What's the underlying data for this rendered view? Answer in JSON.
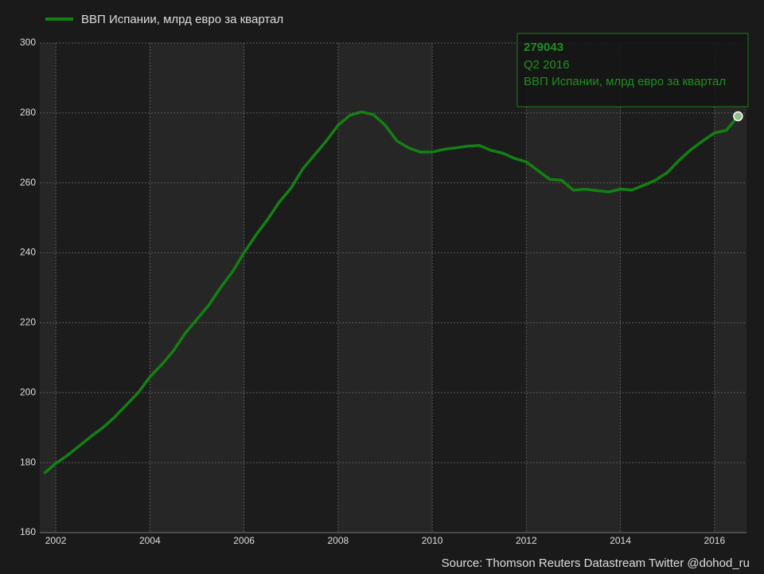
{
  "chart_data": {
    "type": "line",
    "x": [
      2001.75,
      2002.0,
      2002.25,
      2002.5,
      2002.75,
      2003.0,
      2003.25,
      2003.5,
      2003.75,
      2004.0,
      2004.25,
      2004.5,
      2004.75,
      2005.0,
      2005.25,
      2005.5,
      2005.75,
      2006.0,
      2006.25,
      2006.5,
      2006.75,
      2007.0,
      2007.25,
      2007.5,
      2007.75,
      2008.0,
      2008.25,
      2008.5,
      2008.75,
      2009.0,
      2009.25,
      2009.5,
      2009.75,
      2010.0,
      2010.25,
      2010.5,
      2010.75,
      2011.0,
      2011.25,
      2011.5,
      2011.75,
      2012.0,
      2012.25,
      2012.5,
      2012.75,
      2013.0,
      2013.25,
      2013.5,
      2013.75,
      2014.0,
      2014.25,
      2014.5,
      2014.75,
      2015.0,
      2015.25,
      2015.5,
      2015.75,
      2016.0,
      2016.25,
      2016.5
    ],
    "series": [
      {
        "name": "ВВП Испании, млрд евро за квартал",
        "color": "#138013",
        "values": [
          176.9,
          179.8,
          182.1,
          184.8,
          187.5,
          190,
          193,
          196.5,
          200,
          204.5,
          208,
          212,
          217,
          221,
          225,
          230,
          234.5,
          240,
          245,
          249.5,
          254.5,
          258.5,
          264,
          268,
          272,
          276.5,
          279.3,
          280.3,
          279.5,
          276.5,
          272,
          270,
          268.8,
          268.8,
          269.6,
          270,
          270.5,
          270.7,
          269.3,
          268.5,
          267,
          266,
          263.5,
          261,
          260.8,
          257.9,
          258.2,
          257.8,
          257.4,
          258.2,
          258,
          259.3,
          260.8,
          263,
          266.5,
          269.5,
          272,
          274.3,
          275,
          279.043
        ]
      }
    ],
    "xlim": [
      2001.66,
      2016.68
    ],
    "xticks": [
      2002,
      2004,
      2006,
      2008,
      2010,
      2012,
      2014,
      2016
    ],
    "ylim": [
      160,
      300
    ],
    "yticks": [
      160,
      180,
      200,
      220,
      240,
      260,
      280,
      300
    ],
    "grid": true,
    "legend": "top-left",
    "tooltip": {
      "value": "279043",
      "period": "Q2 2016"
    },
    "source": "Source: Thomson Reuters Datastream  Twitter @dohod_ru"
  }
}
